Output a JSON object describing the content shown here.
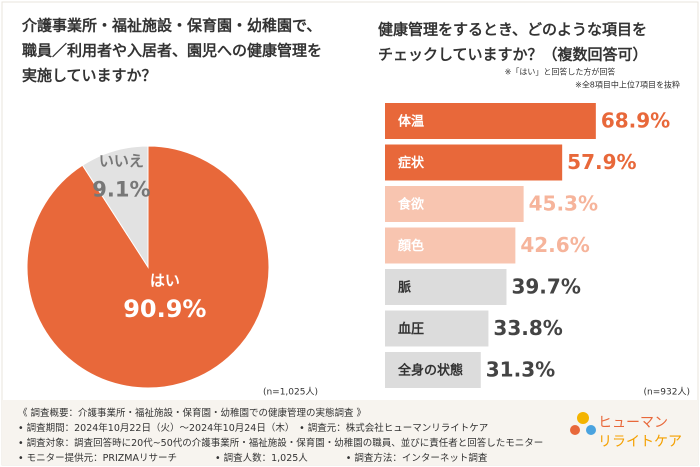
{
  "chart_data": [
    {
      "type": "pie",
      "title": [
        "介護事業所・福祉施設・保育園・幼稚園で、",
        "職員／利用者や入居者、園児への健康管理を",
        "実施していますか？"
      ],
      "categories": [
        "はい",
        "いいえ"
      ],
      "values": [
        90.9,
        9.1
      ],
      "value_labels": [
        "90.9%",
        "9.1%"
      ],
      "colors": [
        "#e8683a",
        "#e2e2e2"
      ],
      "note": "(n=1,025人)"
    },
    {
      "type": "hbar",
      "title": [
        "健康管理をするとき、どのような項目を",
        "チェックしていますか？（複数回答可）"
      ],
      "subtitle": [
        "※「はい」と回答した方が回答",
        "※全8項目中上位7項目を抜粋"
      ],
      "categories": [
        "体温",
        "症状",
        "食欲",
        "顔色",
        "脈",
        "血圧",
        "全身の状態"
      ],
      "values": [
        68.9,
        57.9,
        45.3,
        42.6,
        39.7,
        33.8,
        31.3
      ],
      "value_labels": [
        "68.9%",
        "57.9%",
        "45.3%",
        "42.6%",
        "39.7%",
        "33.8%",
        "31.3%"
      ],
      "colors": [
        "#e8683a",
        "#e8683a",
        "#f8c5b0",
        "#f8c5b0",
        "#dcdcdc",
        "#dcdcdc",
        "#dcdcdc"
      ],
      "value_label_colors": [
        "#e8683a",
        "#e8683a",
        "#f6b49b",
        "#f6b49b",
        "#444444",
        "#444444",
        "#444444"
      ],
      "xlim": [
        0,
        100
      ],
      "note": "(n=932人)"
    }
  ],
  "footer": [
    "《 調査概要：介護事業所・福祉施設・保育園・幼稚園での健康管理の実態調査 》",
    "• 調査期間：2024年10月22日（火）～2024年10月24日（木）　• 調査元：株式会社ヒューマンリライトケア",
    "• 調査対象：調査回答時に20代~50代の介護事業所・福祉施設・保育園・幼稚園の職員、並びに責任者と回答したモニター",
    "• モニター提供元：PRIZMAリサーチ　　　　• 調査人数：1,025人　　　　• 調査方法：インターネット調査"
  ],
  "logo": [
    "ヒューマン",
    "リライトケア"
  ]
}
